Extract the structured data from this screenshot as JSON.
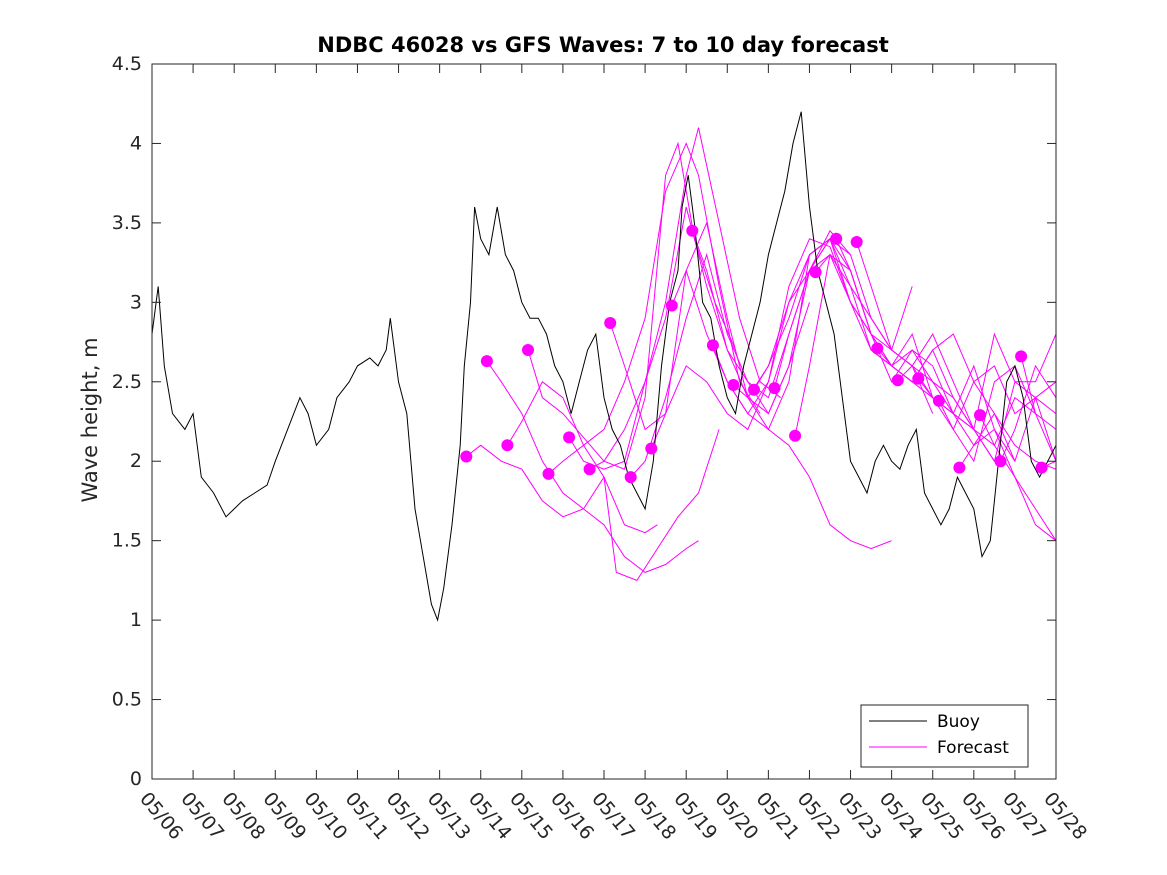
{
  "chart_data": {
    "type": "line",
    "title": "NDBC 46028 vs GFS Waves: 7 to 10 day forecast",
    "xlabel": "",
    "ylabel": "Wave height, m",
    "xlim": [
      0,
      22
    ],
    "ylim": [
      0,
      4.5
    ],
    "x_tick_labels": [
      "05/06",
      "05/07",
      "05/08",
      "05/09",
      "05/10",
      "05/11",
      "05/12",
      "05/13",
      "05/14",
      "05/15",
      "05/16",
      "05/17",
      "05/18",
      "05/19",
      "05/20",
      "05/21",
      "05/22",
      "05/23",
      "05/24",
      "05/25",
      "05/26",
      "05/27",
      "05/28"
    ],
    "y_ticks": [
      0,
      0.5,
      1,
      1.5,
      2,
      2.5,
      3,
      3.5,
      4,
      4.5
    ],
    "y_tick_labels": [
      "0",
      "0.5",
      "1",
      "1.5",
      "2",
      "2.5",
      "3",
      "3.5",
      "4",
      "4.5"
    ],
    "legend": {
      "position": "bottom-right",
      "entries": [
        "Buoy",
        "Forecast"
      ]
    },
    "colors": {
      "buoy": "#000000",
      "forecast": "#ff00ff"
    },
    "series": [
      {
        "name": "Buoy",
        "x": [
          0,
          0.15,
          0.3,
          0.5,
          0.8,
          1.0,
          1.2,
          1.5,
          1.8,
          2.0,
          2.2,
          2.5,
          2.8,
          3.0,
          3.3,
          3.6,
          3.8,
          4.0,
          4.3,
          4.5,
          4.8,
          5.0,
          5.3,
          5.5,
          5.7,
          5.8,
          6.0,
          6.2,
          6.4,
          6.6,
          6.8,
          6.95,
          7.1,
          7.3,
          7.5,
          7.6,
          7.75,
          7.85,
          8.0,
          8.2,
          8.4,
          8.6,
          8.8,
          9.0,
          9.2,
          9.4,
          9.6,
          9.8,
          10.0,
          10.2,
          10.4,
          10.6,
          10.8,
          11.0,
          11.2,
          11.4,
          11.6,
          11.8,
          12.0,
          12.2,
          12.4,
          12.6,
          12.8,
          12.9,
          13.05,
          13.2,
          13.4,
          13.6,
          13.8,
          14.0,
          14.2,
          14.4,
          14.6,
          14.8,
          15.0,
          15.2,
          15.4,
          15.6,
          15.8,
          16.0,
          16.2,
          16.4,
          16.6,
          16.8,
          17.0,
          17.2,
          17.4,
          17.6,
          17.8,
          18.0,
          18.2,
          18.4,
          18.6,
          18.8,
          19.0,
          19.2,
          19.4,
          19.6,
          19.8,
          20.0,
          20.2,
          20.4,
          20.6,
          20.8,
          21.0,
          21.2,
          21.4,
          21.6,
          21.8,
          22.0
        ],
        "y": [
          2.8,
          3.1,
          2.6,
          2.3,
          2.2,
          2.3,
          1.9,
          1.8,
          1.65,
          1.7,
          1.75,
          1.8,
          1.85,
          2.0,
          2.2,
          2.4,
          2.3,
          2.1,
          2.2,
          2.4,
          2.5,
          2.6,
          2.65,
          2.6,
          2.7,
          2.9,
          2.5,
          2.3,
          1.7,
          1.4,
          1.1,
          1.0,
          1.2,
          1.6,
          2.1,
          2.6,
          3.0,
          3.6,
          3.4,
          3.3,
          3.6,
          3.3,
          3.2,
          3.0,
          2.9,
          2.9,
          2.8,
          2.6,
          2.5,
          2.3,
          2.5,
          2.7,
          2.8,
          2.4,
          2.2,
          2.1,
          1.9,
          1.8,
          1.7,
          2.0,
          2.6,
          3.0,
          3.2,
          3.6,
          3.8,
          3.5,
          3.0,
          2.9,
          2.6,
          2.4,
          2.3,
          2.6,
          2.8,
          3.0,
          3.3,
          3.5,
          3.7,
          4.0,
          4.2,
          3.6,
          3.2,
          3.0,
          2.8,
          2.4,
          2.0,
          1.9,
          1.8,
          2.0,
          2.1,
          2.0,
          1.95,
          2.1,
          2.2,
          1.8,
          1.7,
          1.6,
          1.7,
          1.9,
          1.8,
          1.7,
          1.4,
          1.5,
          2.0,
          2.5,
          2.6,
          2.4,
          2.0,
          1.9,
          2.0,
          2.1
        ]
      },
      {
        "name": "Forecast",
        "runs": [
          {
            "x": [
              7.65,
              8.0,
              8.5,
              9.0,
              9.5,
              10.0,
              10.5,
              11.0,
              11.5,
              12.0,
              12.3
            ],
            "y": [
              2.03,
              2.1,
              2.0,
              1.95,
              1.75,
              1.65,
              1.7,
              1.9,
              1.6,
              1.55,
              1.6
            ]
          },
          {
            "x": [
              8.15,
              8.5,
              9.0,
              9.5,
              10.0,
              10.5,
              11.0,
              11.5,
              12.0,
              12.5,
              13.0,
              13.3
            ],
            "y": [
              2.63,
              2.5,
              2.3,
              2.0,
              1.8,
              1.7,
              1.6,
              1.4,
              1.3,
              1.35,
              1.45,
              1.5
            ]
          },
          {
            "x": [
              8.65,
              9.0,
              9.5,
              10.0,
              10.5,
              11.0,
              11.3,
              11.8,
              12.3,
              12.8,
              13.3,
              13.8
            ],
            "y": [
              2.1,
              2.25,
              2.5,
              2.4,
              2.1,
              1.9,
              1.3,
              1.25,
              1.45,
              1.65,
              1.8,
              2.2
            ]
          },
          {
            "x": [
              9.15,
              9.5,
              10.0,
              10.5,
              11.0,
              11.5,
              12.0,
              12.5,
              12.8,
              13.2,
              13.7,
              14.2
            ],
            "y": [
              2.7,
              2.4,
              2.3,
              2.15,
              2.0,
              1.95,
              2.4,
              3.8,
              4.0,
              3.4,
              3.0,
              2.7
            ]
          },
          {
            "x": [
              9.65,
              10.0,
              10.5,
              11.0,
              11.5,
              12.0,
              12.5,
              13.0,
              13.3,
              13.8,
              14.3,
              14.8
            ],
            "y": [
              1.92,
              2.0,
              2.1,
              2.2,
              2.5,
              2.9,
              3.7,
              4.0,
              3.8,
              3.1,
              2.5,
              2.3
            ]
          },
          {
            "x": [
              10.15,
              10.5,
              11.0,
              11.5,
              12.0,
              12.5,
              13.0,
              13.3,
              13.8,
              14.3,
              14.8,
              15.3
            ],
            "y": [
              2.15,
              2.0,
              1.95,
              2.0,
              2.5,
              3.0,
              3.8,
              4.1,
              3.5,
              2.9,
              2.5,
              2.4
            ]
          },
          {
            "x": [
              10.65,
              11.0,
              11.5,
              12.0,
              12.5,
              13.0,
              13.5,
              14.0,
              14.5,
              15.0,
              15.5,
              16.0
            ],
            "y": [
              1.95,
              2.0,
              2.2,
              2.5,
              2.9,
              3.6,
              3.1,
              2.7,
              2.4,
              2.3,
              2.6,
              3.0
            ]
          },
          {
            "x": [
              11.15,
              11.5,
              12.0,
              12.5,
              13.0,
              13.5,
              14.0,
              14.5,
              15.0,
              15.5,
              16.0,
              16.5
            ],
            "y": [
              2.87,
              2.6,
              2.2,
              2.3,
              3.2,
              3.5,
              2.9,
              2.4,
              2.2,
              2.5,
              3.3,
              3.4
            ]
          },
          {
            "x": [
              11.65,
              12.0,
              12.5,
              13.0,
              13.5,
              14.0,
              14.5,
              15.0,
              15.5,
              16.0,
              16.5,
              17.0
            ],
            "y": [
              1.9,
              2.0,
              2.4,
              2.9,
              3.3,
              2.8,
              2.5,
              2.3,
              2.6,
              3.2,
              3.45,
              3.3
            ]
          },
          {
            "x": [
              12.15,
              12.5,
              13.0,
              13.5,
              14.0,
              14.5,
              15.0,
              15.5,
              16.0,
              16.5,
              17.0,
              17.5
            ],
            "y": [
              2.08,
              2.3,
              2.6,
              2.5,
              2.3,
              2.2,
              2.5,
              3.1,
              3.4,
              3.35,
              3.0,
              2.8
            ]
          },
          {
            "x": [
              12.65,
              13.0,
              13.5,
              14.0,
              14.5,
              15.0,
              15.5,
              16.0,
              16.5,
              17.0,
              17.5,
              18.0
            ],
            "y": [
              2.98,
              3.2,
              2.8,
              2.5,
              2.3,
              2.2,
              2.1,
              1.9,
              1.6,
              1.5,
              1.45,
              1.5
            ]
          },
          {
            "x": [
              13.15,
              13.5,
              14.0,
              14.5,
              15.0,
              15.5,
              16.0,
              16.5,
              17.0,
              17.5,
              18.0,
              18.5
            ],
            "y": [
              3.45,
              3.2,
              2.7,
              2.5,
              2.4,
              2.8,
              3.2,
              3.4,
              3.3,
              2.9,
              2.7,
              3.1
            ]
          },
          {
            "x": [
              13.65,
              14.0,
              14.5,
              15.0,
              15.5,
              16.0,
              16.5,
              17.0,
              17.5,
              18.0,
              18.5,
              19.0
            ],
            "y": [
              2.73,
              2.5,
              2.3,
              2.5,
              3.0,
              3.3,
              3.4,
              3.0,
              2.8,
              2.7,
              2.6,
              2.3
            ]
          },
          {
            "x": [
              14.15,
              14.5,
              15.0,
              15.5,
              16.0,
              16.5,
              17.0,
              17.5,
              18.0,
              18.5,
              19.0,
              19.5
            ],
            "y": [
              2.48,
              2.4,
              2.6,
              3.0,
              3.2,
              3.3,
              3.1,
              2.9,
              2.7,
              2.6,
              2.4,
              2.3
            ]
          },
          {
            "x": [
              14.65,
              15.0,
              15.5,
              16.0,
              16.5,
              17.0,
              17.5,
              18.0,
              18.5,
              19.0,
              19.5,
              20.0
            ],
            "y": [
              2.45,
              2.6,
              2.9,
              3.3,
              3.4,
              3.2,
              2.8,
              2.6,
              2.7,
              2.5,
              2.3,
              2.2
            ]
          },
          {
            "x": [
              15.15,
              15.5,
              16.0,
              16.5,
              17.0,
              17.5,
              18.0,
              18.5,
              19.0,
              19.5,
              20.0,
              20.5
            ],
            "y": [
              2.46,
              2.8,
              3.2,
              3.4,
              3.1,
              2.7,
              2.6,
              2.5,
              2.7,
              2.4,
              2.2,
              2.0
            ]
          },
          {
            "x": [
              15.65,
              16.0,
              16.5,
              17.0,
              17.5,
              18.0,
              18.5,
              19.0,
              19.5,
              20.0,
              20.5,
              21.0
            ],
            "y": [
              2.16,
              2.6,
              3.3,
              3.2,
              2.8,
              2.5,
              2.7,
              2.6,
              2.3,
              2.1,
              2.3,
              2.0
            ]
          },
          {
            "x": [
              16.15,
              16.5,
              17.0,
              17.5,
              18.0,
              18.5,
              19.0,
              19.5,
              20.0,
              20.5,
              21.0,
              21.5
            ],
            "y": [
              3.19,
              3.3,
              3.0,
              2.7,
              2.6,
              2.8,
              2.4,
              2.2,
              2.0,
              2.5,
              2.6,
              2.3
            ]
          },
          {
            "x": [
              16.65,
              17.0,
              17.5,
              18.0,
              18.5,
              19.0,
              19.5,
              20.0,
              20.5,
              21.0,
              21.5,
              22.0
            ],
            "y": [
              3.4,
              3.2,
              2.8,
              2.6,
              2.5,
              2.7,
              2.8,
              2.5,
              2.6,
              2.3,
              2.4,
              2.5
            ]
          },
          {
            "x": [
              17.15,
              17.5,
              18.0,
              18.5,
              19.0,
              19.5,
              20.0,
              20.5,
              21.0,
              21.5,
              22.0
            ],
            "y": [
              3.38,
              3.1,
              2.7,
              2.6,
              2.5,
              2.4,
              2.2,
              2.1,
              1.9,
              1.7,
              1.5
            ]
          },
          {
            "x": [
              17.65,
              18.0,
              18.5,
              19.0,
              19.5,
              20.0,
              20.5,
              21.0,
              21.5,
              22.0
            ],
            "y": [
              2.71,
              2.6,
              2.5,
              2.4,
              2.3,
              2.2,
              2.8,
              2.5,
              2.5,
              2.8
            ]
          },
          {
            "x": [
              18.15,
              18.5,
              19.0,
              19.5,
              20.0,
              20.5,
              21.0,
              21.5,
              22.0
            ],
            "y": [
              2.51,
              2.6,
              2.8,
              2.5,
              2.2,
              2.0,
              2.5,
              2.4,
              2.3
            ]
          },
          {
            "x": [
              18.65,
              19.0,
              19.5,
              20.0,
              20.5,
              21.0,
              21.5,
              22.0
            ],
            "y": [
              2.52,
              2.4,
              2.3,
              2.6,
              2.2,
              2.0,
              2.4,
              2.0
            ]
          },
          {
            "x": [
              19.15,
              19.5,
              20.0,
              20.5,
              21.0,
              21.5,
              22.0
            ],
            "y": [
              2.38,
              2.2,
              2.5,
              2.3,
              2.1,
              2.0,
              1.95
            ]
          },
          {
            "x": [
              19.65,
              20.0,
              20.5,
              21.0,
              21.5,
              22.0
            ],
            "y": [
              1.96,
              2.1,
              2.2,
              1.9,
              1.6,
              1.5
            ]
          },
          {
            "x": [
              20.15,
              20.5,
              21.0,
              21.5,
              22.0
            ],
            "y": [
              2.29,
              2.1,
              2.4,
              2.3,
              2.2
            ]
          },
          {
            "x": [
              20.65,
              21.0,
              21.5,
              22.0
            ],
            "y": [
              2.0,
              2.2,
              2.6,
              2.4
            ]
          },
          {
            "x": [
              21.15,
              21.5,
              22.0
            ],
            "y": [
              2.66,
              2.3,
              2.0
            ]
          },
          {
            "x": [
              21.65,
              22.0
            ],
            "y": [
              1.96,
              2.0
            ]
          }
        ]
      }
    ]
  }
}
